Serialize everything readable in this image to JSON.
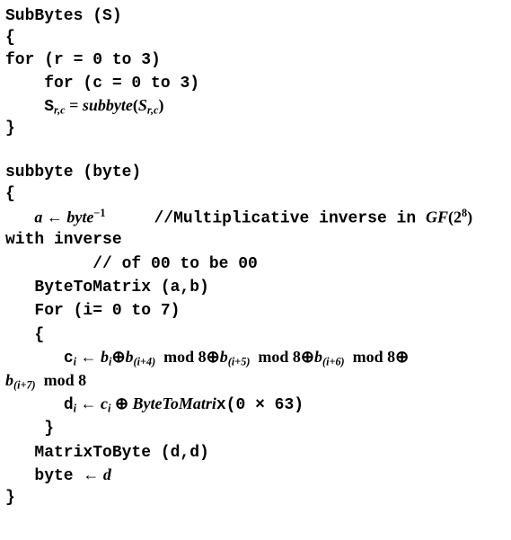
{
  "l1_a": "SubBytes (S)",
  "l2": "{",
  "l3": "for (r = 0 to 3)",
  "l4_pad": "    ",
  "l4": "for (c = 0 to 3)",
  "l5_pad": "    ",
  "l5_a": "S",
  "l5_sub1": "r,c",
  "l5_eq": " = ",
  "l5_fn": "subbyte",
  "l5_open": "(",
  "l5_b": "S",
  "l5_sub2": "r,c",
  "l5_close": ")",
  "l6": "}",
  "blank": " ",
  "l8": "subbyte (byte)",
  "l9": "{",
  "l10_pad": "   ",
  "l10_a": "a",
  "l10_arr": " ← ",
  "l10_by": "byte",
  "l10_inv": "−1",
  "l10_gap": "     ",
  "l10_c1": "//",
  "l10_c2": "Multiplicative inverse in ",
  "l10_gf": "GF",
  "l10_p": "(2",
  "l10_e": "8",
  "l10_cp": ")",
  "l11": "with inverse",
  "l12_pad": "         ",
  "l12": "// of 00 to be 00",
  "l13_pad": "   ",
  "l13": "ByteToMatrix (a,b)",
  "l14_pad": "   ",
  "l14": "For (i= 0 to 7)",
  "l15_pad": "   ",
  "l15": "{",
  "l16_pad": "      ",
  "l16_c": "c",
  "l16_ci": "i",
  "l16_ar": " ← ",
  "l16_b1": "b",
  "l16_bi": "i",
  "l16_x": "⊕",
  "l16_b2": "b",
  "l16_s4": "(i+4)",
  "l16_m": "  mod 8⊕",
  "l16_b3": "b",
  "l16_s5": "(i+5)",
  "l16_m2": "  mod 8⊕",
  "l16_b4": "b",
  "l16_s6": "(i+6)",
  "l16_m3": "  mod 8⊕",
  "l17_b": "b",
  "l17_s": "(i+7)",
  "l17_m": "  mod 8",
  "l18_pad": "      ",
  "l18_d": "d",
  "l18_di": "i",
  "l18_ar": " ← ",
  "l18_c": "c",
  "l18_ci": "i",
  "l18_x": " ⊕ ",
  "l18_fn": "ByteToMatri",
  "l18_x2": "x(0 × 63)",
  "l19_pad": "    ",
  "l19": "}",
  "l20_pad": "   ",
  "l20": "MatrixToByte (d,d)",
  "l21_pad": "   ",
  "l21_a": "byte ",
  "l21_ar": "← ",
  "l21_d": "d",
  "l22": "}"
}
